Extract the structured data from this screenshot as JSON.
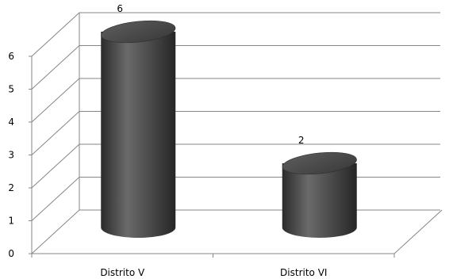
{
  "chart_data": {
    "type": "bar",
    "style": "3d-cylinder",
    "categories": [
      "Distrito V",
      "Distrito VI"
    ],
    "values": [
      6,
      2
    ],
    "data_labels": [
      "6",
      "2"
    ],
    "y_ticks": [
      "0",
      "1",
      "2",
      "3",
      "4",
      "5",
      "6"
    ],
    "ylim": [
      0,
      6
    ],
    "grid": true,
    "legend": "none",
    "title": "",
    "xlabel": "",
    "ylabel": "",
    "bar_color": "#4a4a4a",
    "grid_color": "#868686"
  }
}
